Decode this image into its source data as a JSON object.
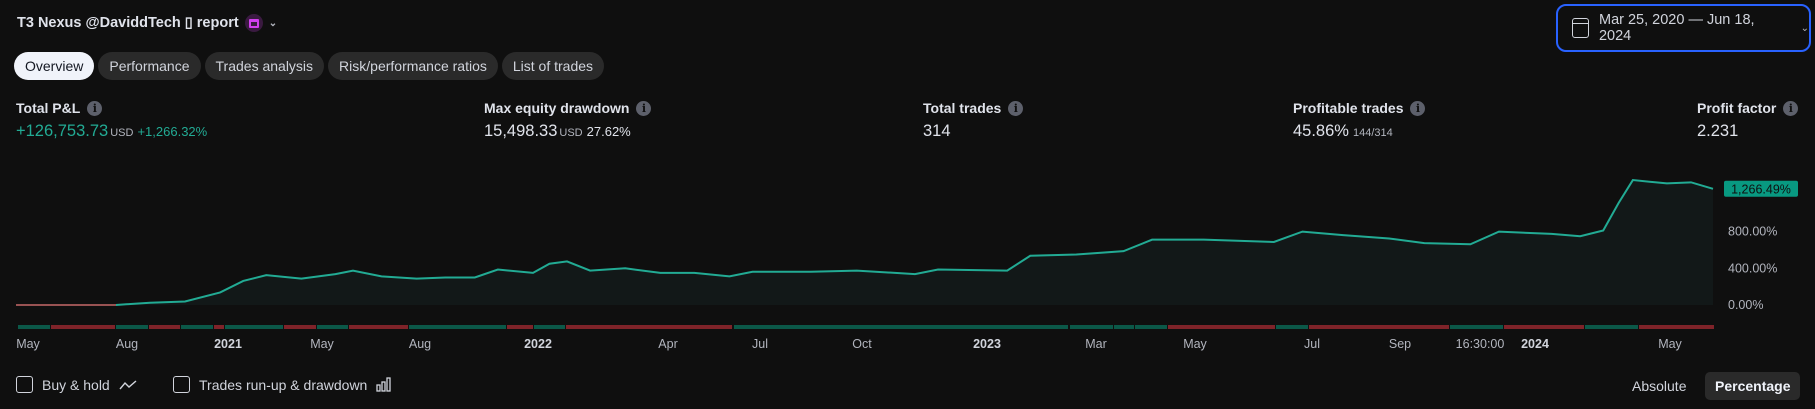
{
  "header": {
    "title": "T3 Nexus @DaviddTech ▯ report",
    "calendar_icon": "calendar-icon",
    "date_range": "Mar 25, 2020 — Jun 18, 2024"
  },
  "tabs": [
    {
      "label": "Overview",
      "active": true
    },
    {
      "label": "Performance"
    },
    {
      "label": "Trades analysis"
    },
    {
      "label": "Risk/performance ratios"
    },
    {
      "label": "List of trades"
    }
  ],
  "stats": {
    "total_pnl": {
      "label": "Total P&L",
      "value": "+126,753.73",
      "unit": "USD",
      "pct": "+1,266.32%"
    },
    "max_drawdown": {
      "label": "Max equity drawdown",
      "value": "15,498.33",
      "unit": "USD",
      "pct": "27.62%"
    },
    "total_trades": {
      "label": "Total trades",
      "value": "314"
    },
    "profitable": {
      "label": "Profitable trades",
      "value": "45.86%",
      "sub": "144/314"
    },
    "profit_factor": {
      "label": "Profit factor",
      "value": "2.231"
    }
  },
  "colors": {
    "line": "#22ab94",
    "win": "#0b5848",
    "loss": "#7f2329",
    "accent": "#2962ff"
  },
  "chart_data": {
    "type": "area",
    "y_ticks": [
      "0.00%",
      "400.00%",
      "800.00%"
    ],
    "ylim": [
      0,
      1400
    ],
    "last_value_label": "1,266.49%",
    "x_ticks": [
      {
        "label": "May"
      },
      {
        "label": "Aug"
      },
      {
        "label": "2021",
        "bold": true
      },
      {
        "label": "May"
      },
      {
        "label": "Aug"
      },
      {
        "label": "2022",
        "bold": true
      },
      {
        "label": "Apr"
      },
      {
        "label": "Jul"
      },
      {
        "label": "Oct"
      },
      {
        "label": "2023",
        "bold": true
      },
      {
        "label": "Mar"
      },
      {
        "label": "May"
      },
      {
        "label": "Jul"
      },
      {
        "label": "Sep"
      },
      {
        "label": "16:30:00"
      },
      {
        "label": "2024",
        "bold": true
      },
      {
        "label": "May"
      }
    ],
    "series": [
      [
        "2020-03-25",
        0
      ],
      [
        "2020-06-24",
        0
      ],
      [
        "2020-07-25",
        25
      ],
      [
        "2020-08-26",
        38
      ],
      [
        "2020-09-27",
        137
      ],
      [
        "2020-10-18",
        262
      ],
      [
        "2020-11-08",
        325
      ],
      [
        "2020-12-10",
        288
      ],
      [
        "2021-01-10",
        337
      ],
      [
        "2021-01-26",
        375
      ],
      [
        "2021-02-21",
        312
      ],
      [
        "2021-03-25",
        288
      ],
      [
        "2021-04-20",
        300
      ],
      [
        "2021-05-17",
        300
      ],
      [
        "2021-06-07",
        387
      ],
      [
        "2021-07-09",
        350
      ],
      [
        "2021-07-24",
        450
      ],
      [
        "2021-08-09",
        475
      ],
      [
        "2021-08-30",
        375
      ],
      [
        "2021-10-01",
        400
      ],
      [
        "2021-11-02",
        350
      ],
      [
        "2021-12-03",
        350
      ],
      [
        "2022-01-04",
        312
      ],
      [
        "2022-01-25",
        362
      ],
      [
        "2022-03-19",
        362
      ],
      [
        "2022-04-30",
        375
      ],
      [
        "2022-06-22",
        337
      ],
      [
        "2022-07-13",
        387
      ],
      [
        "2022-09-14",
        375
      ],
      [
        "2022-10-05",
        537
      ],
      [
        "2022-11-16",
        550
      ],
      [
        "2022-12-29",
        587
      ],
      [
        "2023-01-24",
        712
      ],
      [
        "2023-03-12",
        712
      ],
      [
        "2023-05-15",
        687
      ],
      [
        "2023-06-10",
        800
      ],
      [
        "2023-07-17",
        762
      ],
      [
        "2023-08-28",
        725
      ],
      [
        "2023-09-29",
        675
      ],
      [
        "2023-11-10",
        662
      ],
      [
        "2023-12-06",
        800
      ],
      [
        "2024-01-23",
        775
      ],
      [
        "2024-02-18",
        750
      ],
      [
        "2024-03-10",
        812
      ],
      [
        "2024-03-24",
        1112
      ],
      [
        "2024-04-06",
        1362
      ],
      [
        "2024-05-07",
        1325
      ],
      [
        "2024-05-29",
        1337
      ],
      [
        "2024-06-18",
        1266.49
      ]
    ],
    "trade_periods": [
      "win",
      "loss",
      "win",
      "loss",
      "win",
      "loss",
      "win",
      "loss",
      "win",
      "loss",
      "win",
      "loss",
      "win",
      "loss",
      "win",
      "win",
      "win",
      "win",
      "loss",
      "win",
      "loss",
      "win",
      "loss",
      "win",
      "loss"
    ]
  },
  "footer": {
    "buy_hold": "Buy & hold",
    "runup": "Trades run-up & drawdown",
    "absolute": "Absolute",
    "percentage": "Percentage"
  }
}
